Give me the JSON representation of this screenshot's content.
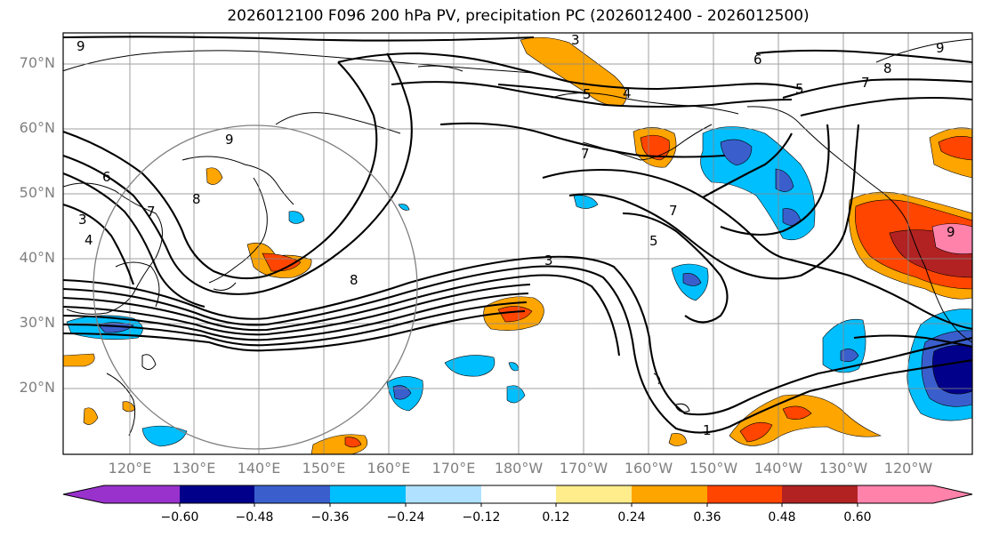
{
  "title": "2026012100 F096 200 hPa PV, precipitation PC (2026012400 - 2026012500)",
  "lat_labels": [
    "70°N",
    "60°N",
    "50°N",
    "40°N",
    "30°N",
    "20°N"
  ],
  "lon_labels": [
    "120°E",
    "130°E",
    "140°E",
    "150°E",
    "160°E",
    "170°E",
    "180°W",
    "170°W",
    "160°W",
    "150°W",
    "140°W",
    "130°W",
    "120°W"
  ],
  "colorbar": {
    "ticks": [
      "−0.60",
      "−0.48",
      "−0.36",
      "−0.24",
      "−0.12",
      "0.12",
      "0.24",
      "0.36",
      "0.48",
      "0.60"
    ],
    "colors": [
      "#9932cc",
      "#00008b",
      "#3a5fcd",
      "#00bfff",
      "#b0e2ff",
      "#ffffff",
      "#ffec8b",
      "#ffa500",
      "#ff4500",
      "#b22222",
      "#ff82ab"
    ]
  },
  "contour_labels": [
    "9",
    "6",
    "7",
    "8",
    "3",
    "4",
    "3",
    "6",
    "5",
    "7",
    "8",
    "9",
    "9",
    "5",
    "4",
    "7",
    "5",
    "8",
    "7",
    "3",
    "9",
    "1"
  ]
}
